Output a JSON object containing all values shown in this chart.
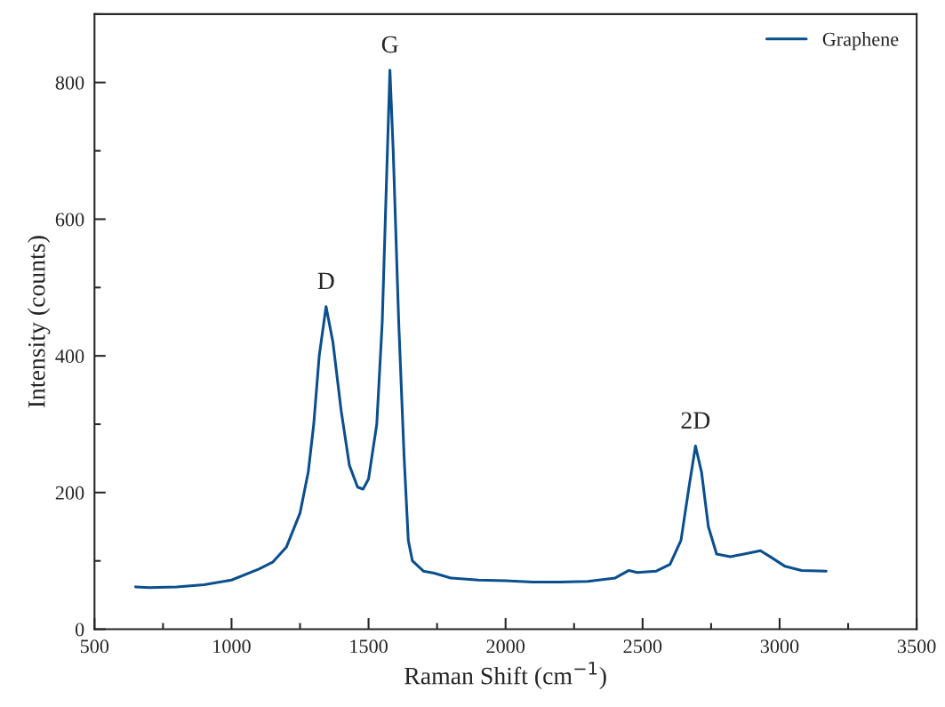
{
  "chart_data": {
    "type": "line",
    "xlabel": "Raman Shift (cm$^{−1}$)",
    "ylabel": "Intensity (counts)",
    "x": [
      650,
      700,
      800,
      900,
      1000,
      1100,
      1150,
      1200,
      1250,
      1280,
      1300,
      1320,
      1345,
      1370,
      1400,
      1430,
      1460,
      1480,
      1500,
      1530,
      1550,
      1565,
      1578,
      1590,
      1610,
      1630,
      1645,
      1660,
      1700,
      1740,
      1800,
      1900,
      2000,
      2100,
      2200,
      2300,
      2400,
      2450,
      2480,
      2550,
      2600,
      2640,
      2670,
      2693,
      2715,
      2740,
      2770,
      2820,
      2870,
      2930,
      2970,
      3020,
      3080,
      3170
    ],
    "series": [
      {
        "name": "Graphene",
        "color": "#0b4f8f",
        "values": [
          62,
          61,
          62,
          65,
          72,
          88,
          98,
          120,
          170,
          230,
          300,
          400,
          472,
          420,
          320,
          240,
          208,
          205,
          220,
          300,
          450,
          650,
          818,
          700,
          450,
          250,
          130,
          100,
          85,
          82,
          75,
          72,
          71,
          69,
          69,
          70,
          75,
          86,
          83,
          85,
          95,
          130,
          210,
          268,
          230,
          150,
          110,
          106,
          110,
          115,
          105,
          92,
          86,
          85
        ]
      }
    ],
    "annotations": [
      {
        "text": "D",
        "x": 1345,
        "y": 472
      },
      {
        "text": "G",
        "x": 1578,
        "y": 818
      },
      {
        "text": "2D",
        "x": 2693,
        "y": 268
      }
    ],
    "xlim": [
      500,
      3500
    ],
    "xticks": [
      500,
      1000,
      1500,
      2000,
      2500,
      3000,
      3500
    ],
    "ylim": [
      0,
      900
    ],
    "yticks": [
      0,
      200,
      400,
      600,
      800
    ],
    "legend": "top right",
    "grid": false,
    "marker": "none",
    "line_style": "solid"
  }
}
